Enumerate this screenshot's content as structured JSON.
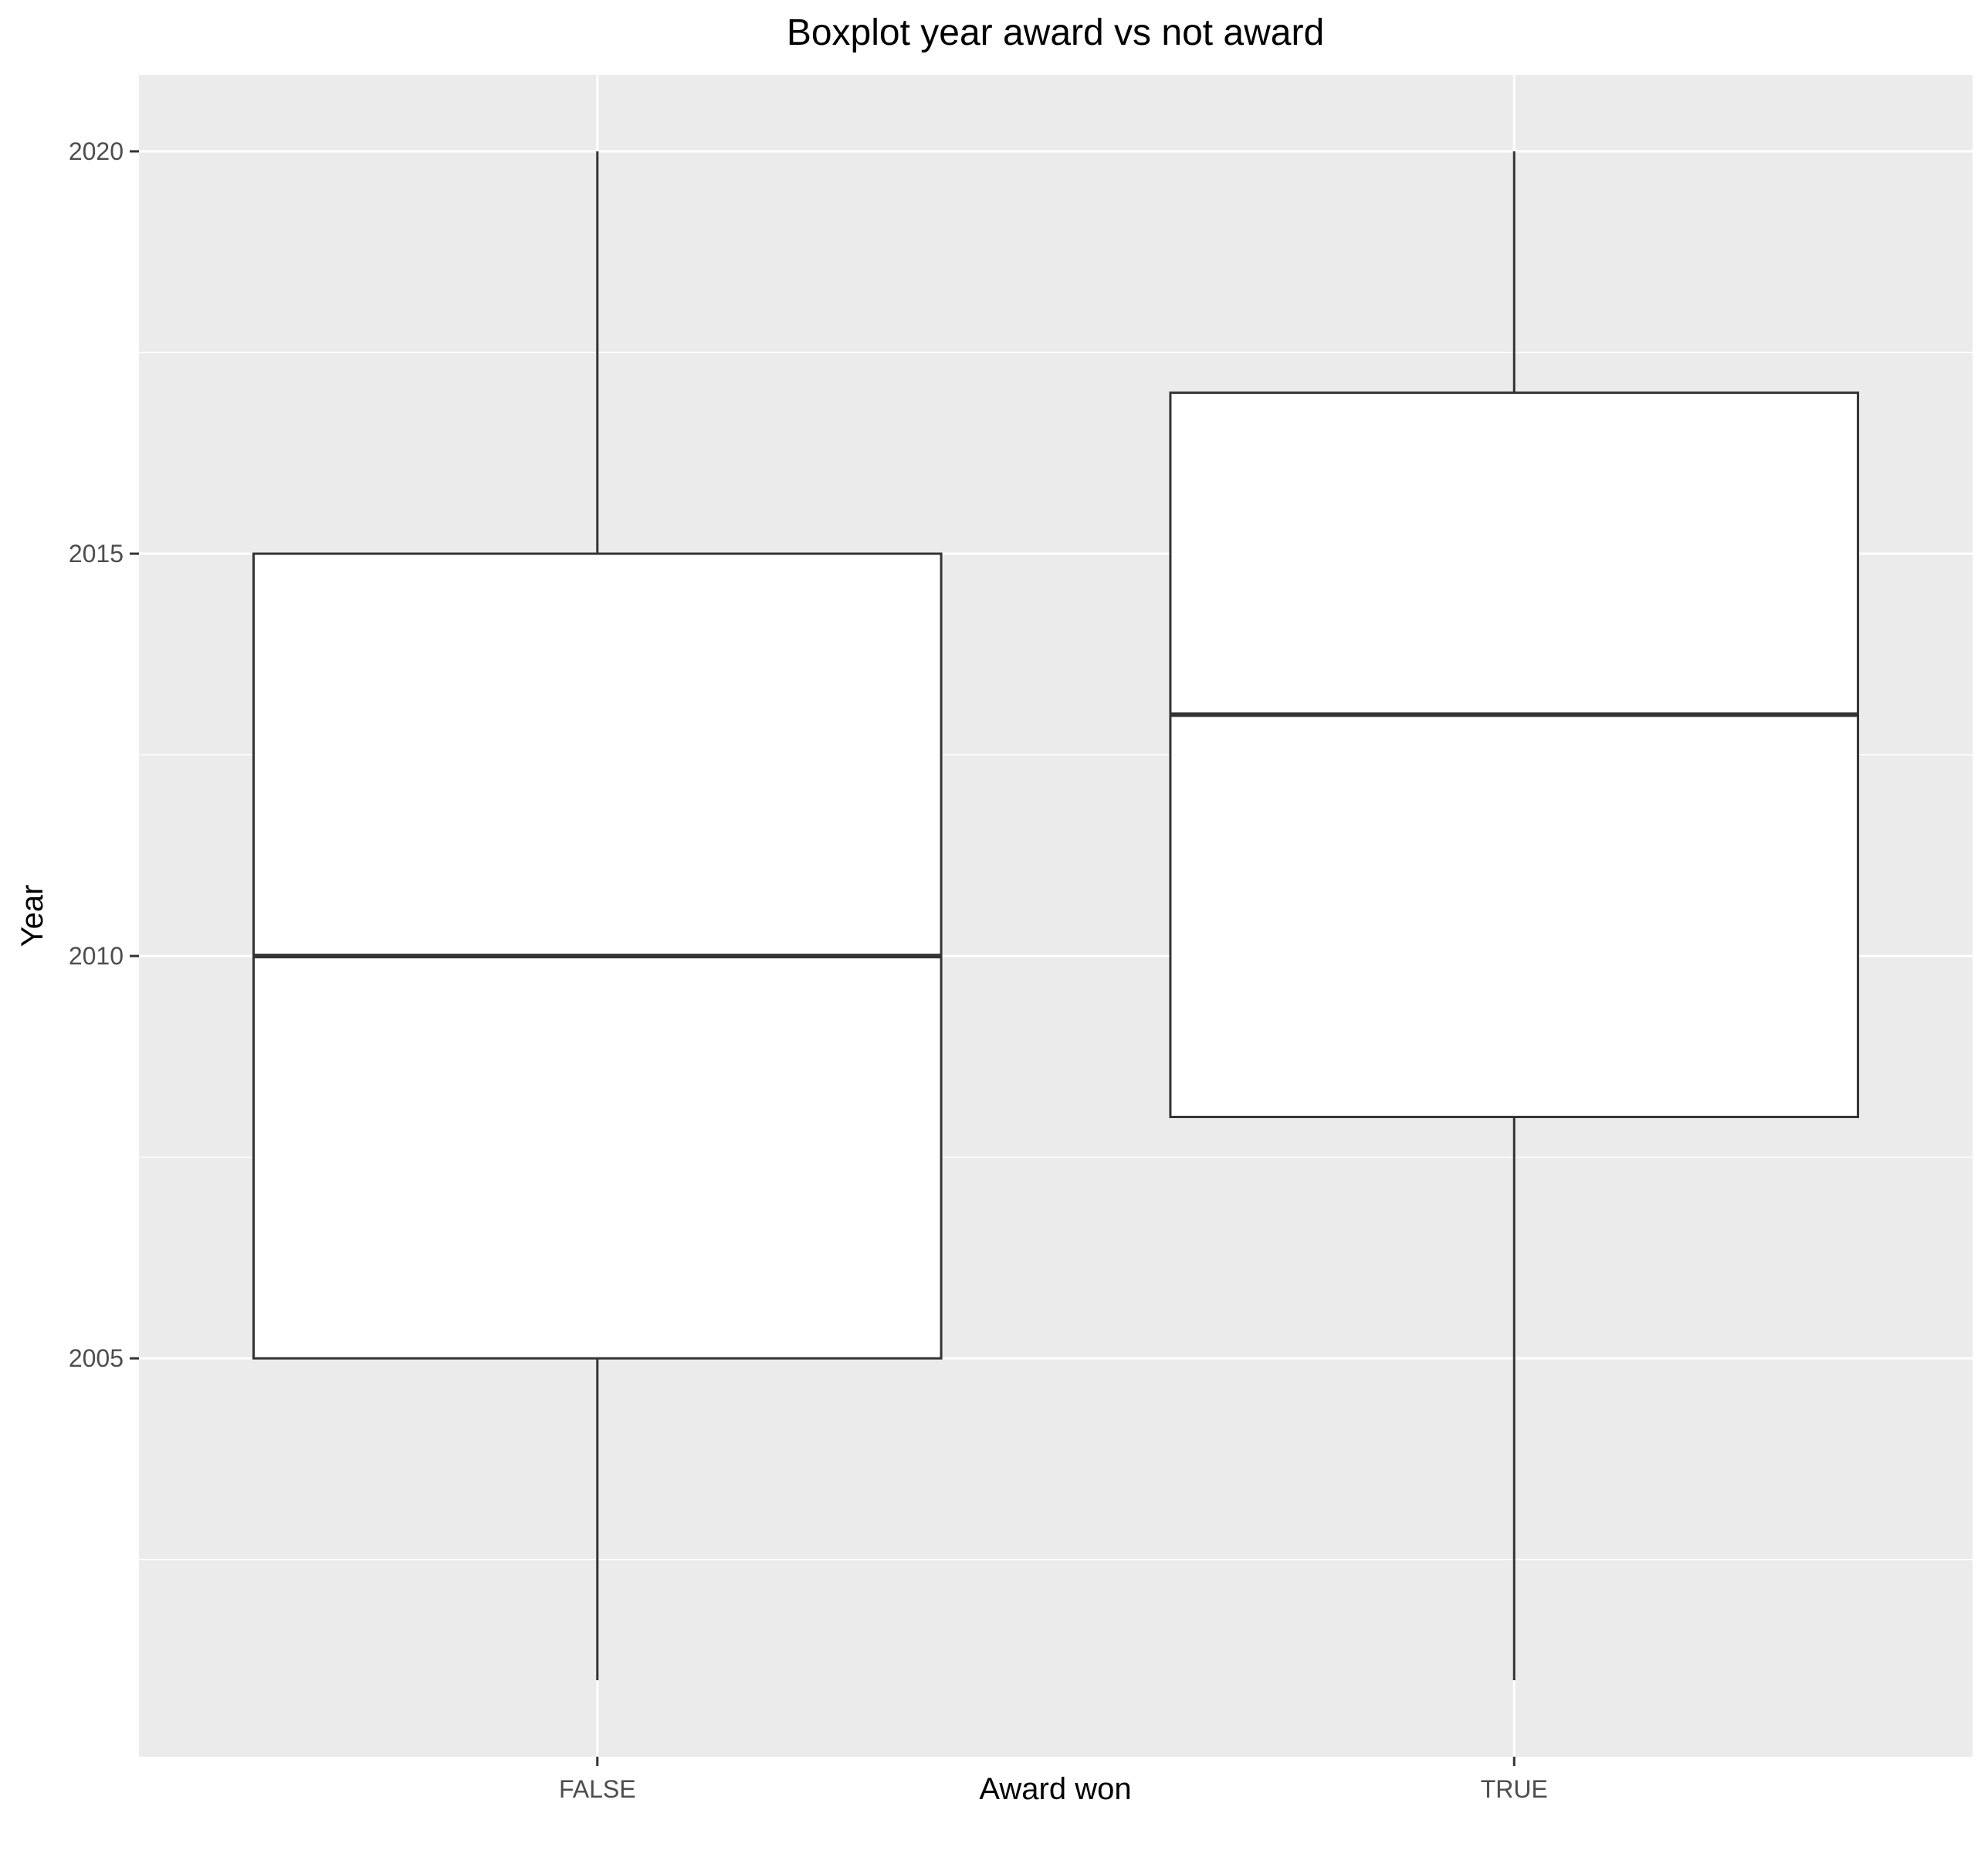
{
  "chart_data": {
    "type": "boxplot",
    "title": "Boxplot year award vs not award",
    "xlabel": "Award won",
    "ylabel": "Year",
    "categories": [
      "FALSE",
      "TRUE"
    ],
    "boxes": [
      {
        "category": "FALSE",
        "min": 2001,
        "q1": 2005,
        "median": 2010,
        "q3": 2015,
        "max": 2020
      },
      {
        "category": "TRUE",
        "min": 2001,
        "q1": 2008,
        "median": 2013,
        "q3": 2017,
        "max": 2020
      }
    ],
    "ylim": [
      2000.05,
      2020.95
    ],
    "yticks": [
      2005,
      2010,
      2015,
      2020
    ],
    "yticks_minor": [
      2002.5,
      2007.5,
      2012.5,
      2017.5
    ],
    "grid": true,
    "colors": {
      "panel": "#ebebeb",
      "grid": "#ffffff",
      "box_fill": "#ffffff",
      "box_stroke": "#333333",
      "tick": "#333333",
      "tick_label": "#4d4d4d"
    }
  }
}
